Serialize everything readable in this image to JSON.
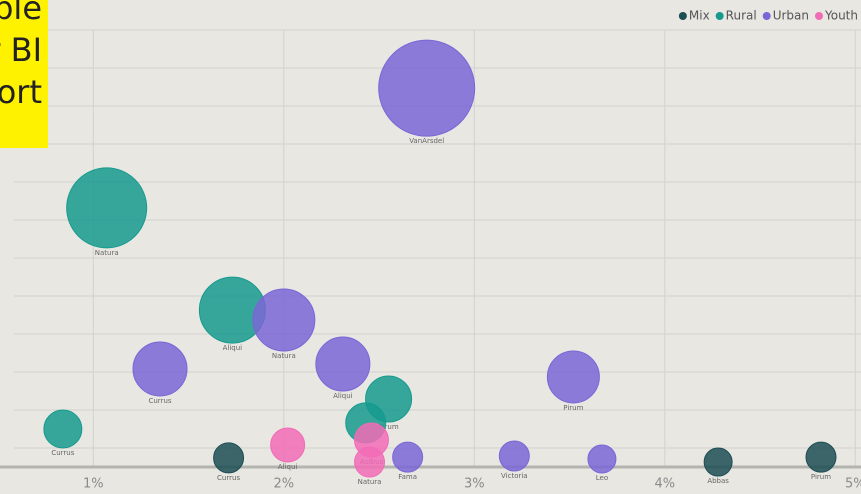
{
  "chart_data": {
    "type": "scatter",
    "annotation_lines": [
      "ble",
      "r BI",
      "ort"
    ],
    "xlim": [
      0.51,
      5.03
    ],
    "xticks": [
      {
        "value": 1,
        "label": "1%"
      },
      {
        "value": 2,
        "label": "2%"
      },
      {
        "value": 3,
        "label": "3%"
      },
      {
        "value": 4,
        "label": "4%"
      },
      {
        "value": 5,
        "label": "5%"
      }
    ],
    "ylim": [
      0.5,
      12.79
    ],
    "yticks": [
      1,
      2,
      3,
      4,
      5,
      6,
      7,
      8,
      9,
      10,
      11,
      12
    ],
    "grid": true,
    "legend": "top-right",
    "series": [
      {
        "name": "Mix",
        "color": "#1d4d55",
        "x": [
          1.71,
          4.28,
          4.82
        ],
        "values": [
          0.74,
          0.63,
          0.76
        ],
        "sizes": [
          15,
          14,
          15
        ],
        "labels": [
          "Currus",
          "Abbas",
          "Pirum"
        ]
      },
      {
        "name": "Rural",
        "color": "#169a8e",
        "x": [
          1.07,
          1.73,
          2.55,
          0.84,
          2.43
        ],
        "values": [
          7.32,
          4.63,
          2.29,
          1.5,
          1.66
        ],
        "sizes": [
          40,
          33,
          23,
          19,
          20
        ],
        "labels": [
          "Natura",
          "Aliqui",
          "Pirum",
          "Currus",
          null
        ]
      },
      {
        "name": "Urban",
        "color": "#7a66d6",
        "x": [
          2.75,
          2.0,
          1.35,
          2.31,
          3.52,
          2.65,
          3.21,
          3.67
        ],
        "values": [
          10.47,
          4.37,
          3.08,
          3.21,
          2.87,
          0.76,
          0.79,
          0.71
        ],
        "sizes": [
          48,
          31,
          27,
          27,
          26,
          15,
          15,
          14
        ],
        "labels": [
          "VanArsdel",
          "Natura",
          "Currus",
          "Aliqui",
          "Pirum",
          "Fama",
          "Victoria",
          "Leo"
        ]
      },
      {
        "name": "Youth",
        "color": "#f26bb6",
        "x": [
          2.02,
          2.46,
          2.45
        ],
        "values": [
          1.08,
          1.21,
          0.63
        ],
        "sizes": [
          17,
          17,
          15
        ],
        "labels": [
          "Aliqui",
          "Aulbus",
          "Natura"
        ]
      }
    ]
  }
}
